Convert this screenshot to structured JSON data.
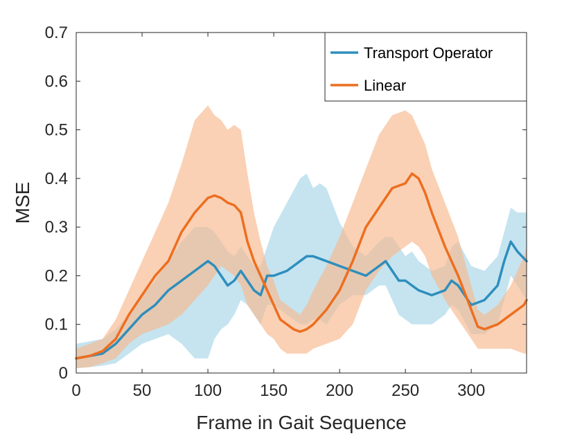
{
  "chart_data": {
    "type": "line",
    "title": "",
    "xlabel": "Frame in Gait Sequence",
    "ylabel": "MSE",
    "xlim": [
      0,
      342
    ],
    "ylim": [
      0,
      0.7
    ],
    "xticks": [
      0,
      50,
      100,
      150,
      200,
      250,
      300
    ],
    "yticks": [
      0,
      0.1,
      0.2,
      0.3,
      0.4,
      0.5,
      0.6,
      0.7
    ],
    "xtick_labels": [
      "0",
      "50",
      "100",
      "150",
      "200",
      "250",
      "300"
    ],
    "ytick_labels": [
      "0",
      "0.1",
      "0.2",
      "0.3",
      "0.4",
      "0.5",
      "0.6",
      "0.7"
    ],
    "grid": false,
    "legend_position": "top-right",
    "series": [
      {
        "name": "Transport Operator",
        "color": "#2e8ebd",
        "band_color": "#a6d6e8",
        "x": [
          0,
          10,
          20,
          30,
          40,
          50,
          60,
          70,
          80,
          90,
          100,
          105,
          110,
          115,
          120,
          125,
          130,
          135,
          140,
          145,
          150,
          160,
          170,
          175,
          180,
          185,
          190,
          200,
          210,
          220,
          230,
          235,
          240,
          245,
          250,
          255,
          260,
          270,
          280,
          285,
          290,
          300,
          310,
          320,
          325,
          330,
          335,
          342
        ],
        "mean": [
          0.03,
          0.035,
          0.04,
          0.06,
          0.09,
          0.12,
          0.14,
          0.17,
          0.19,
          0.21,
          0.23,
          0.22,
          0.2,
          0.18,
          0.19,
          0.21,
          0.19,
          0.17,
          0.16,
          0.2,
          0.2,
          0.21,
          0.23,
          0.24,
          0.24,
          0.235,
          0.23,
          0.22,
          0.21,
          0.2,
          0.22,
          0.23,
          0.21,
          0.19,
          0.19,
          0.18,
          0.17,
          0.16,
          0.17,
          0.19,
          0.18,
          0.14,
          0.15,
          0.18,
          0.23,
          0.27,
          0.25,
          0.23
        ],
        "upper": [
          0.06,
          0.065,
          0.07,
          0.09,
          0.12,
          0.16,
          0.19,
          0.23,
          0.27,
          0.3,
          0.3,
          0.29,
          0.27,
          0.25,
          0.24,
          0.26,
          0.24,
          0.22,
          0.22,
          0.26,
          0.3,
          0.35,
          0.4,
          0.41,
          0.38,
          0.39,
          0.38,
          0.31,
          0.26,
          0.24,
          0.27,
          0.28,
          0.28,
          0.26,
          0.24,
          0.25,
          0.23,
          0.21,
          0.22,
          0.26,
          0.27,
          0.22,
          0.21,
          0.24,
          0.29,
          0.34,
          0.33,
          0.33
        ],
        "lower": [
          0.01,
          0.012,
          0.015,
          0.02,
          0.04,
          0.06,
          0.07,
          0.08,
          0.06,
          0.03,
          0.03,
          0.07,
          0.09,
          0.1,
          0.12,
          0.15,
          0.14,
          0.12,
          0.1,
          0.14,
          0.14,
          0.12,
          0.1,
          0.1,
          0.11,
          0.11,
          0.1,
          0.14,
          0.16,
          0.16,
          0.18,
          0.18,
          0.15,
          0.12,
          0.11,
          0.1,
          0.1,
          0.1,
          0.12,
          0.14,
          0.13,
          0.08,
          0.08,
          0.1,
          0.15,
          0.2,
          0.18,
          0.15
        ]
      },
      {
        "name": "Linear",
        "color": "#ed6e1f",
        "band_color": "#f8b98e",
        "x": [
          0,
          10,
          20,
          30,
          40,
          50,
          60,
          70,
          80,
          90,
          100,
          105,
          110,
          115,
          120,
          125,
          130,
          135,
          140,
          145,
          150,
          155,
          160,
          165,
          170,
          175,
          180,
          190,
          200,
          210,
          220,
          230,
          240,
          250,
          255,
          260,
          265,
          270,
          280,
          290,
          300,
          305,
          310,
          320,
          330,
          340,
          342
        ],
        "mean": [
          0.03,
          0.035,
          0.045,
          0.07,
          0.12,
          0.16,
          0.2,
          0.23,
          0.29,
          0.33,
          0.36,
          0.365,
          0.36,
          0.35,
          0.345,
          0.33,
          0.27,
          0.23,
          0.2,
          0.17,
          0.14,
          0.11,
          0.1,
          0.09,
          0.085,
          0.09,
          0.1,
          0.13,
          0.17,
          0.23,
          0.3,
          0.34,
          0.38,
          0.39,
          0.41,
          0.4,
          0.37,
          0.33,
          0.26,
          0.2,
          0.13,
          0.095,
          0.09,
          0.1,
          0.12,
          0.14,
          0.15
        ],
        "upper": [
          0.05,
          0.06,
          0.07,
          0.11,
          0.17,
          0.23,
          0.29,
          0.35,
          0.43,
          0.52,
          0.55,
          0.53,
          0.52,
          0.5,
          0.51,
          0.5,
          0.41,
          0.33,
          0.27,
          0.22,
          0.19,
          0.15,
          0.14,
          0.13,
          0.12,
          0.14,
          0.17,
          0.22,
          0.28,
          0.35,
          0.42,
          0.49,
          0.53,
          0.54,
          0.53,
          0.5,
          0.47,
          0.42,
          0.35,
          0.28,
          0.18,
          0.13,
          0.12,
          0.14,
          0.18,
          0.24,
          0.26
        ],
        "lower": [
          0.01,
          0.012,
          0.02,
          0.03,
          0.06,
          0.08,
          0.09,
          0.1,
          0.12,
          0.15,
          0.18,
          0.2,
          0.22,
          0.21,
          0.2,
          0.18,
          0.14,
          0.12,
          0.1,
          0.08,
          0.07,
          0.05,
          0.04,
          0.04,
          0.04,
          0.04,
          0.05,
          0.06,
          0.07,
          0.1,
          0.17,
          0.21,
          0.24,
          0.26,
          0.27,
          0.26,
          0.24,
          0.2,
          0.15,
          0.11,
          0.07,
          0.05,
          0.05,
          0.05,
          0.05,
          0.04,
          0.04
        ]
      }
    ]
  }
}
